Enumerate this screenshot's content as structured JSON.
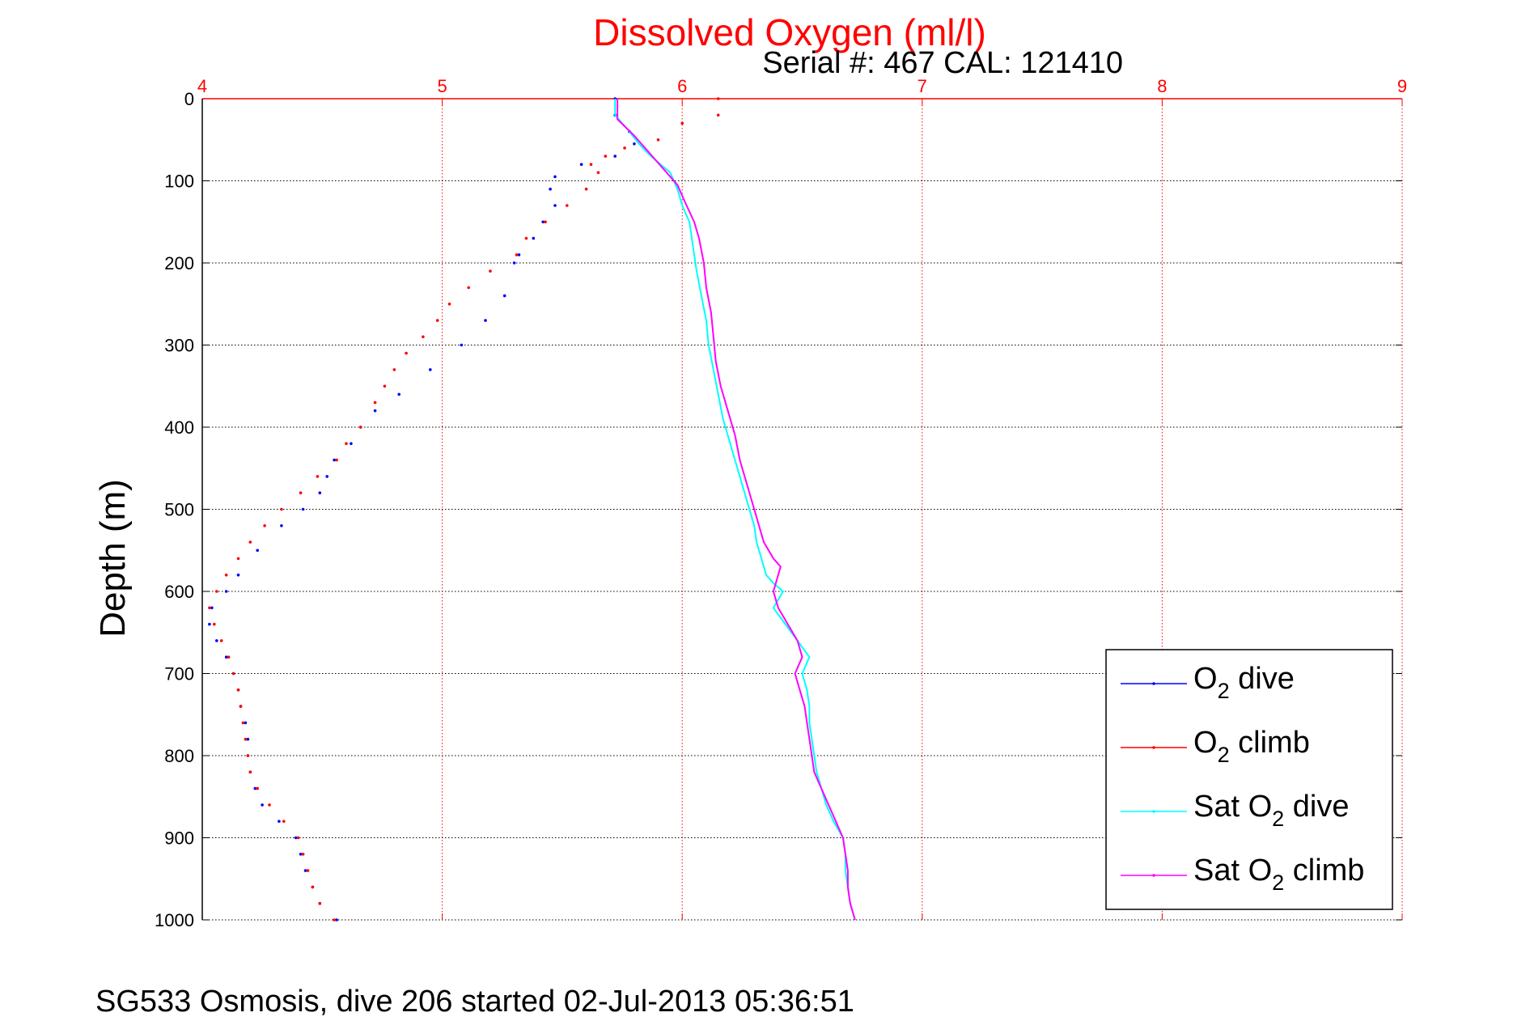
{
  "chart_data": {
    "type": "scatter",
    "title": "Dissolved Oxygen (ml/l)",
    "subtitle": "Serial #: 467  CAL: 121410",
    "ylabel": "Depth (m)",
    "xlabel": "",
    "footer": "SG533 Osmosis, dive 206 started 02-Jul-2013 05:36:51",
    "xlim": [
      4,
      9
    ],
    "ylim": [
      0,
      1000
    ],
    "y_reversed": true,
    "x_axis_position": "top",
    "xticks": [
      4,
      5,
      6,
      7,
      8,
      9
    ],
    "xtick_labels": [
      "4",
      "5",
      "6",
      "7",
      "8",
      "9"
    ],
    "yticks": [
      0,
      100,
      200,
      300,
      400,
      500,
      600,
      700,
      800,
      900,
      1000
    ],
    "ytick_labels": [
      "0",
      "100",
      "200",
      "300",
      "400",
      "500",
      "600",
      "700",
      "800",
      "900",
      "1000"
    ],
    "grid": true,
    "legend_position": "bottom-right",
    "axis_colors": {
      "x": "#ff0000",
      "y": "#000000",
      "grid_x": "#ff0000",
      "grid_y": "#000000"
    },
    "series": [
      {
        "name": "O2 dive",
        "legend_main": "O",
        "legend_sub": "2",
        "legend_rest": " dive",
        "color": "#0000ff",
        "style": "dots",
        "points": [
          [
            5.72,
            0
          ],
          [
            5.72,
            20
          ],
          [
            5.78,
            40
          ],
          [
            5.8,
            55
          ],
          [
            5.72,
            70
          ],
          [
            5.58,
            80
          ],
          [
            5.47,
            95
          ],
          [
            5.45,
            110
          ],
          [
            5.47,
            130
          ],
          [
            5.42,
            150
          ],
          [
            5.38,
            170
          ],
          [
            5.32,
            190
          ],
          [
            5.3,
            200
          ],
          [
            5.26,
            240
          ],
          [
            5.18,
            270
          ],
          [
            5.08,
            300
          ],
          [
            4.95,
            330
          ],
          [
            4.82,
            360
          ],
          [
            4.72,
            380
          ],
          [
            4.66,
            400
          ],
          [
            4.62,
            420
          ],
          [
            4.55,
            440
          ],
          [
            4.52,
            460
          ],
          [
            4.49,
            480
          ],
          [
            4.42,
            500
          ],
          [
            4.33,
            520
          ],
          [
            4.23,
            550
          ],
          [
            4.15,
            580
          ],
          [
            4.1,
            600
          ],
          [
            4.04,
            620
          ],
          [
            4.03,
            640
          ],
          [
            4.06,
            660
          ],
          [
            4.1,
            680
          ],
          [
            4.13,
            700
          ],
          [
            4.15,
            720
          ],
          [
            4.16,
            740
          ],
          [
            4.18,
            760
          ],
          [
            4.19,
            780
          ],
          [
            4.19,
            800
          ],
          [
            4.2,
            820
          ],
          [
            4.22,
            840
          ],
          [
            4.25,
            860
          ],
          [
            4.32,
            880
          ],
          [
            4.39,
            900
          ],
          [
            4.41,
            920
          ],
          [
            4.43,
            940
          ],
          [
            4.46,
            960
          ],
          [
            4.49,
            980
          ],
          [
            4.56,
            1000
          ]
        ]
      },
      {
        "name": "O2 climb",
        "legend_main": "O",
        "legend_sub": "2",
        "legend_rest": " climb",
        "color": "#ff0000",
        "style": "dots",
        "points": [
          [
            6.15,
            0
          ],
          [
            6.15,
            20
          ],
          [
            6.0,
            30
          ],
          [
            5.9,
            50
          ],
          [
            5.76,
            60
          ],
          [
            5.68,
            70
          ],
          [
            5.62,
            80
          ],
          [
            5.65,
            90
          ],
          [
            5.6,
            110
          ],
          [
            5.52,
            130
          ],
          [
            5.43,
            150
          ],
          [
            5.35,
            170
          ],
          [
            5.31,
            190
          ],
          [
            5.2,
            210
          ],
          [
            5.11,
            230
          ],
          [
            5.03,
            250
          ],
          [
            4.98,
            270
          ],
          [
            4.92,
            290
          ],
          [
            4.85,
            310
          ],
          [
            4.8,
            330
          ],
          [
            4.76,
            350
          ],
          [
            4.72,
            370
          ],
          [
            4.66,
            400
          ],
          [
            4.6,
            420
          ],
          [
            4.56,
            440
          ],
          [
            4.48,
            460
          ],
          [
            4.41,
            480
          ],
          [
            4.33,
            500
          ],
          [
            4.26,
            520
          ],
          [
            4.2,
            540
          ],
          [
            4.15,
            560
          ],
          [
            4.1,
            580
          ],
          [
            4.06,
            600
          ],
          [
            4.03,
            620
          ],
          [
            4.05,
            640
          ],
          [
            4.08,
            660
          ],
          [
            4.11,
            680
          ],
          [
            4.13,
            700
          ],
          [
            4.15,
            720
          ],
          [
            4.16,
            740
          ],
          [
            4.17,
            760
          ],
          [
            4.18,
            780
          ],
          [
            4.19,
            800
          ],
          [
            4.2,
            820
          ],
          [
            4.23,
            840
          ],
          [
            4.28,
            860
          ],
          [
            4.34,
            880
          ],
          [
            4.4,
            900
          ],
          [
            4.42,
            920
          ],
          [
            4.44,
            940
          ],
          [
            4.46,
            960
          ],
          [
            4.49,
            980
          ],
          [
            4.55,
            1000
          ]
        ]
      },
      {
        "name": "Sat O2 dive",
        "legend_main": "Sat O",
        "legend_sub": "2",
        "legend_rest": " dive",
        "color": "#00ffff",
        "style": "line",
        "points": [
          [
            5.72,
            0
          ],
          [
            5.72,
            20
          ],
          [
            5.78,
            40
          ],
          [
            5.82,
            55
          ],
          [
            5.87,
            70
          ],
          [
            5.95,
            90
          ],
          [
            5.98,
            110
          ],
          [
            6.0,
            130
          ],
          [
            6.03,
            150
          ],
          [
            6.04,
            170
          ],
          [
            6.05,
            190
          ],
          [
            6.06,
            210
          ],
          [
            6.08,
            240
          ],
          [
            6.1,
            270
          ],
          [
            6.11,
            300
          ],
          [
            6.13,
            330
          ],
          [
            6.15,
            360
          ],
          [
            6.17,
            390
          ],
          [
            6.2,
            420
          ],
          [
            6.23,
            450
          ],
          [
            6.26,
            480
          ],
          [
            6.28,
            500
          ],
          [
            6.3,
            520
          ],
          [
            6.31,
            540
          ],
          [
            6.33,
            560
          ],
          [
            6.35,
            580
          ],
          [
            6.38,
            590
          ],
          [
            6.42,
            600
          ],
          [
            6.38,
            620
          ],
          [
            6.43,
            640
          ],
          [
            6.48,
            660
          ],
          [
            6.53,
            680
          ],
          [
            6.5,
            700
          ],
          [
            6.52,
            720
          ],
          [
            6.53,
            740
          ],
          [
            6.53,
            760
          ],
          [
            6.54,
            780
          ],
          [
            6.55,
            800
          ],
          [
            6.56,
            820
          ],
          [
            6.58,
            840
          ],
          [
            6.6,
            860
          ],
          [
            6.63,
            880
          ],
          [
            6.67,
            900
          ],
          [
            6.68,
            920
          ],
          [
            6.68,
            940
          ],
          [
            6.69,
            960
          ],
          [
            6.7,
            980
          ],
          [
            6.72,
            1000
          ]
        ]
      },
      {
        "name": "Sat O2 climb",
        "legend_main": "Sat O",
        "legend_sub": "2",
        "legend_rest": " climb",
        "color": "#ff00ff",
        "style": "line",
        "points": [
          [
            5.73,
            0
          ],
          [
            5.73,
            25
          ],
          [
            5.8,
            45
          ],
          [
            5.86,
            65
          ],
          [
            5.92,
            85
          ],
          [
            5.98,
            105
          ],
          [
            6.01,
            125
          ],
          [
            6.05,
            150
          ],
          [
            6.07,
            170
          ],
          [
            6.09,
            200
          ],
          [
            6.1,
            230
          ],
          [
            6.12,
            260
          ],
          [
            6.13,
            290
          ],
          [
            6.14,
            320
          ],
          [
            6.16,
            350
          ],
          [
            6.19,
            380
          ],
          [
            6.22,
            410
          ],
          [
            6.24,
            440
          ],
          [
            6.27,
            470
          ],
          [
            6.3,
            500
          ],
          [
            6.32,
            520
          ],
          [
            6.34,
            540
          ],
          [
            6.38,
            560
          ],
          [
            6.41,
            570
          ],
          [
            6.38,
            600
          ],
          [
            6.4,
            620
          ],
          [
            6.44,
            640
          ],
          [
            6.48,
            660
          ],
          [
            6.5,
            680
          ],
          [
            6.47,
            700
          ],
          [
            6.49,
            720
          ],
          [
            6.51,
            740
          ],
          [
            6.52,
            760
          ],
          [
            6.53,
            780
          ],
          [
            6.54,
            800
          ],
          [
            6.55,
            820
          ],
          [
            6.58,
            840
          ],
          [
            6.61,
            860
          ],
          [
            6.64,
            880
          ],
          [
            6.67,
            900
          ],
          [
            6.68,
            920
          ],
          [
            6.69,
            940
          ],
          [
            6.69,
            960
          ],
          [
            6.7,
            980
          ],
          [
            6.72,
            1000
          ]
        ]
      }
    ]
  }
}
